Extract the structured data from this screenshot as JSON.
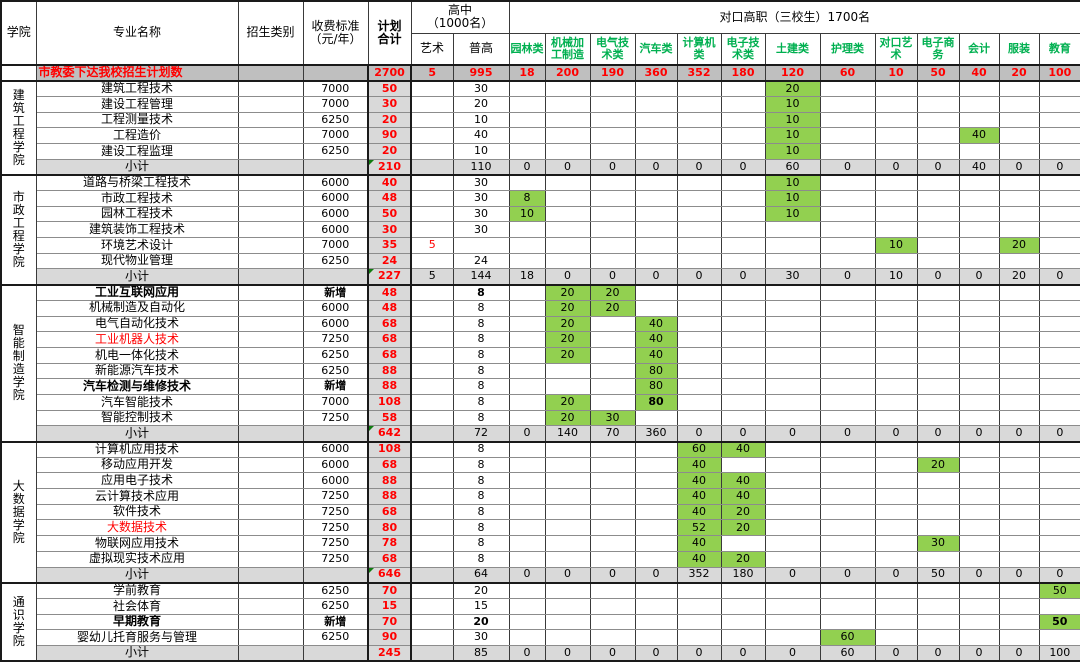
{
  "colors": {
    "green_fill": "#92D050",
    "green_header_text": "#00B050",
    "red_text": "#FF0000",
    "plan_row_gray": "#BFBFBF",
    "subtotal_gray": "#D9D9D9",
    "triangle_green": "#107C10"
  },
  "labels": {
    "subtotal_label": "小计"
  },
  "header": {
    "college": "学院",
    "major": "专业名称",
    "category": "招生类别",
    "fee": "收费标准\n（元/年）",
    "plan": "计划\n合计",
    "gaozhong": "高中\n（1000名）",
    "art": "艺术",
    "pugao": "普高",
    "duikou": "对口高职（三校生）1700名",
    "voc": [
      "园林类",
      "机械加工制造",
      "电气技术类",
      "汽车类",
      "计算机类",
      "电子技术类",
      "土建类",
      "护理类",
      "对口艺术",
      "电子商务",
      "会计",
      "服装",
      "教育"
    ]
  },
  "plan_row": {
    "label": "市教委下达我校招生计划数",
    "total": "2700",
    "art": "5",
    "pugao": "995",
    "voc": [
      "18",
      "200",
      "190",
      "360",
      "352",
      "180",
      "120",
      "60",
      "10",
      "50",
      "40",
      "20",
      "100"
    ]
  },
  "sections": [
    {
      "college": "建筑工程学院",
      "rows": [
        {
          "name": "建筑工程技术",
          "fee": "7000",
          "total": "50",
          "pugao": "30",
          "voc": {
            "6": "20"
          }
        },
        {
          "name": "建设工程管理",
          "fee": "7000",
          "total": "30",
          "pugao": "20",
          "voc": {
            "6": "10"
          }
        },
        {
          "name": "工程测量技术",
          "fee": "6250",
          "total": "20",
          "pugao": "10",
          "voc": {
            "6": "10"
          }
        },
        {
          "name": "工程造价",
          "fee": "7000",
          "total": "90",
          "pugao": "40",
          "voc": {
            "6": "10",
            "10": "40"
          }
        },
        {
          "name": "建设工程监理",
          "fee": "6250",
          "total": "20",
          "pugao": "10",
          "voc": {
            "6": "10"
          }
        }
      ],
      "subtotal": {
        "total": "210",
        "art": "",
        "pugao": "110",
        "voc": [
          "0",
          "0",
          "0",
          "0",
          "0",
          "0",
          "60",
          "0",
          "0",
          "0",
          "40",
          "0",
          "0"
        ],
        "triangle": true
      }
    },
    {
      "college": "市政工程学院",
      "rows": [
        {
          "name": "道路与桥梁工程技术",
          "fee": "6000",
          "total": "40",
          "pugao": "30",
          "voc": {
            "6": "10"
          }
        },
        {
          "name": "市政工程技术",
          "fee": "6000",
          "total": "48",
          "pugao": "30",
          "voc": {
            "0": "8",
            "6": "10"
          }
        },
        {
          "name": "园林工程技术",
          "fee": "6000",
          "total": "50",
          "pugao": "30",
          "voc": {
            "0": "10",
            "6": "10"
          }
        },
        {
          "name": "建筑装饰工程技术",
          "fee": "6000",
          "total": "30",
          "pugao": "30",
          "voc": {}
        },
        {
          "name": "环境艺术设计",
          "fee": "7000",
          "total": "35",
          "art": "5",
          "art_red": true,
          "pugao": "",
          "voc": {
            "8": "10",
            "11": "20"
          }
        },
        {
          "name": "现代物业管理",
          "fee": "6250",
          "total": "24",
          "pugao": "24",
          "voc": {}
        }
      ],
      "subtotal": {
        "total": "227",
        "art": "5",
        "pugao": "144",
        "voc": [
          "18",
          "0",
          "0",
          "0",
          "0",
          "0",
          "30",
          "0",
          "10",
          "0",
          "0",
          "20",
          "0"
        ],
        "triangle": true
      }
    },
    {
      "college": "智能制造学院",
      "rows": [
        {
          "name": "工业互联网应用",
          "name_bold": true,
          "fee": "新增",
          "fee_bold": true,
          "total": "48",
          "pugao": "8",
          "pugao_bold": true,
          "voc": {
            "1": "20",
            "2": "20"
          }
        },
        {
          "name": "机械制造及自动化",
          "fee": "6000",
          "total": "48",
          "pugao": "8",
          "voc": {
            "1": "20",
            "2": "20"
          }
        },
        {
          "name": "电气自动化技术",
          "fee": "6000",
          "total": "68",
          "pugao": "8",
          "voc": {
            "1": "20",
            "3": "40"
          }
        },
        {
          "name": "工业机器人技术",
          "name_red": true,
          "fee": "7250",
          "total": "68",
          "pugao": "8",
          "voc": {
            "1": "20",
            "3": "40"
          }
        },
        {
          "name": "机电一体化技术",
          "fee": "6250",
          "total": "68",
          "pugao": "8",
          "voc": {
            "1": "20",
            "3": "40"
          }
        },
        {
          "name": "新能源汽车技术",
          "fee": "6250",
          "total": "88",
          "pugao": "8",
          "voc": {
            "3": "80"
          }
        },
        {
          "name": "汽车检测与维修技术",
          "name_bold": true,
          "fee": "新增",
          "fee_bold": true,
          "total": "88",
          "pugao": "8",
          "voc": {
            "3": "80"
          }
        },
        {
          "name": "汽车智能技术",
          "fee": "7000",
          "total": "108",
          "pugao": "8",
          "voc": {
            "1": "20",
            "3": "80"
          },
          "bold_voc": [
            3
          ]
        },
        {
          "name": "智能控制技术",
          "fee": "7250",
          "total": "58",
          "pugao": "8",
          "voc": {
            "1": "20",
            "2": "30"
          }
        }
      ],
      "subtotal": {
        "total": "642",
        "art": "",
        "pugao": "72",
        "voc": [
          "0",
          "140",
          "70",
          "360",
          "0",
          "0",
          "0",
          "0",
          "0",
          "0",
          "0",
          "0",
          "0"
        ],
        "triangle": true
      }
    },
    {
      "college": "大数据学院",
      "rows": [
        {
          "name": "计算机应用技术",
          "fee": "6000",
          "total": "108",
          "pugao": "8",
          "voc": {
            "4": "60",
            "5": "40"
          }
        },
        {
          "name": "移动应用开发",
          "fee": "6000",
          "total": "68",
          "pugao": "8",
          "voc": {
            "4": "40",
            "9": "20"
          }
        },
        {
          "name": "应用电子技术",
          "fee": "6000",
          "total": "88",
          "pugao": "8",
          "voc": {
            "4": "40",
            "5": "40"
          }
        },
        {
          "name": "云计算技术应用",
          "fee": "7250",
          "total": "88",
          "pugao": "8",
          "voc": {
            "4": "40",
            "5": "40"
          }
        },
        {
          "name": "软件技术",
          "fee": "7250",
          "total": "68",
          "pugao": "8",
          "voc": {
            "4": "40",
            "5": "20"
          }
        },
        {
          "name": "大数据技术",
          "name_red": true,
          "fee": "7250",
          "total": "80",
          "pugao": "8",
          "voc": {
            "4": "52",
            "5": "20"
          }
        },
        {
          "name": "物联网应用技术",
          "fee": "7250",
          "total": "78",
          "pugao": "8",
          "voc": {
            "4": "40",
            "9": "30"
          }
        },
        {
          "name": "虚拟现实技术应用",
          "fee": "7250",
          "total": "68",
          "pugao": "8",
          "voc": {
            "4": "40",
            "5": "20"
          }
        }
      ],
      "subtotal": {
        "total": "646",
        "art": "",
        "pugao": "64",
        "voc": [
          "0",
          "0",
          "0",
          "0",
          "352",
          "180",
          "0",
          "0",
          "0",
          "50",
          "0",
          "0",
          "0"
        ],
        "triangle": true
      }
    },
    {
      "college": "通识学院",
      "rows": [
        {
          "name": "学前教育",
          "fee": "6250",
          "total": "70",
          "pugao": "20",
          "voc": {
            "12": "50"
          }
        },
        {
          "name": "社会体育",
          "fee": "6250",
          "total": "15",
          "pugao": "15",
          "voc": {}
        },
        {
          "name": "早期教育",
          "name_bold": true,
          "fee": "新增",
          "fee_bold": true,
          "total": "70",
          "pugao": "20",
          "pugao_bold": true,
          "voc": {
            "12": "50"
          },
          "bold_voc": [
            12
          ]
        },
        {
          "name": "婴幼儿托育服务与管理",
          "fee": "6250",
          "total": "90",
          "pugao": "30",
          "voc": {
            "7": "60"
          }
        }
      ],
      "subtotal": {
        "total": "245",
        "art": "",
        "pugao": "85",
        "voc": [
          "0",
          "0",
          "0",
          "0",
          "0",
          "0",
          "0",
          "60",
          "0",
          "0",
          "0",
          "0",
          "100"
        ],
        "triangle": false
      }
    }
  ]
}
